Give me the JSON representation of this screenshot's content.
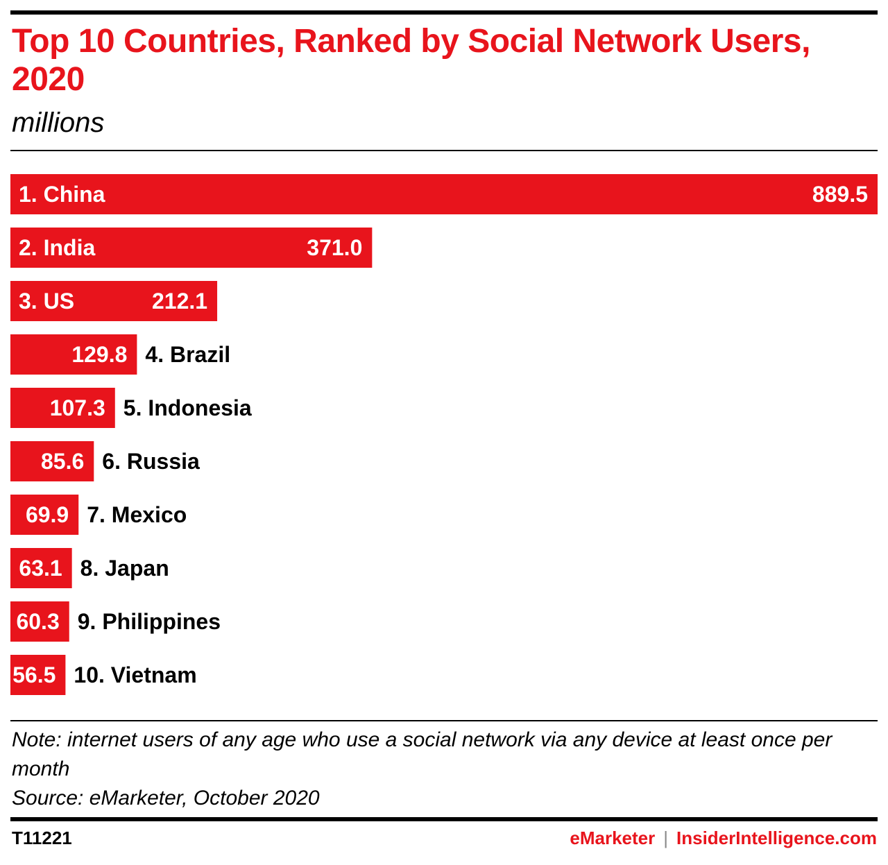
{
  "header": {
    "title": "Top 10 Countries, Ranked by Social Network Users, 2020",
    "subtitle": "millions"
  },
  "chart_data": {
    "type": "bar",
    "orientation": "horizontal",
    "categories": [
      "1. China",
      "2. India",
      "3. US",
      "4. Brazil",
      "5. Indonesia",
      "6. Russia",
      "7. Mexico",
      "8. Japan",
      "9. Philippines",
      "10. Vietnam"
    ],
    "values": [
      889.5,
      371.0,
      212.1,
      129.8,
      107.3,
      85.6,
      69.9,
      63.1,
      60.3,
      56.5
    ],
    "value_labels": [
      "889.5",
      "371.0",
      "212.1",
      "129.8",
      "107.3",
      "85.6",
      "69.9",
      "63.1",
      "60.3",
      "56.5"
    ],
    "bar_color": "#e8141c"
  },
  "footer": {
    "note": "Note: internet users of any age who use a social network via any device at least once per month",
    "source": "Source: eMarketer, October 2020",
    "chart_id": "T11221",
    "brand_left": "eMarketer",
    "brand_sep": "|",
    "brand_right": "InsiderIntelligence.com"
  }
}
